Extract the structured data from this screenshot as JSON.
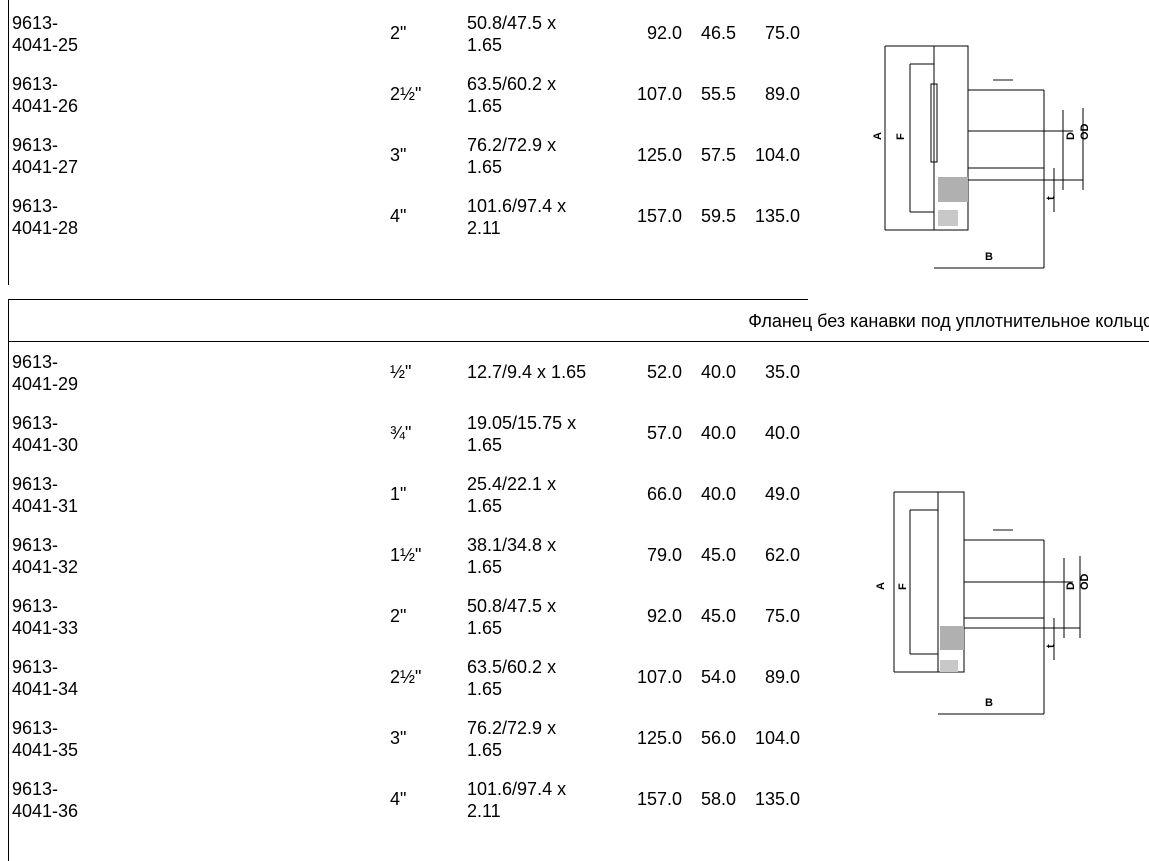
{
  "sections": [
    {
      "caption": "",
      "rows": [
        {
          "article": [
            "9613-",
            "4041-25"
          ],
          "size": "2\"",
          "tube": [
            "50.8/47.5 x",
            "1.65"
          ],
          "a": "92.0",
          "b": "46.5",
          "f": "75.0"
        },
        {
          "article": [
            "9613-",
            "4041-26"
          ],
          "size": "2½\"",
          "tube": [
            "63.5/60.2 x",
            "1.65"
          ],
          "a": "107.0",
          "b": "55.5",
          "f": "89.0"
        },
        {
          "article": [
            "9613-",
            "4041-27"
          ],
          "size": "3\"",
          "tube": [
            "76.2/72.9 x",
            "1.65"
          ],
          "a": "125.0",
          "b": "57.5",
          "f": "104.0"
        },
        {
          "article": [
            "9613-",
            "4041-28"
          ],
          "size": "4\"",
          "tube": [
            "101.6/97.4 x",
            "2.11"
          ],
          "a": "157.0",
          "b": "59.5",
          "f": "135.0"
        }
      ]
    },
    {
      "caption": "Фланец без канавки под уплотнительное кольцо",
      "rows": [
        {
          "article": [
            "9613-",
            "4041-29"
          ],
          "size": "½\"",
          "tube": [
            "12.7/9.4 x 1.65",
            ""
          ],
          "a": "52.0",
          "b": "40.0",
          "f": "35.0"
        },
        {
          "article": [
            "9613-",
            "4041-30"
          ],
          "size": "¾\"",
          "tube": [
            "19.05/15.75 x",
            "1.65"
          ],
          "a": "57.0",
          "b": "40.0",
          "f": "40.0"
        },
        {
          "article": [
            "9613-",
            "4041-31"
          ],
          "size": "1\"",
          "tube": [
            "25.4/22.1 x",
            "1.65"
          ],
          "a": "66.0",
          "b": "40.0",
          "f": "49.0"
        },
        {
          "article": [
            "9613-",
            "4041-32"
          ],
          "size": "1½\"",
          "tube": [
            "38.1/34.8 x",
            "1.65"
          ],
          "a": "79.0",
          "b": "45.0",
          "f": "62.0"
        },
        {
          "article": [
            "9613-",
            "4041-33"
          ],
          "size": "2\"",
          "tube": [
            "50.8/47.5 x",
            "1.65"
          ],
          "a": "92.0",
          "b": "45.0",
          "f": "75.0"
        },
        {
          "article": [
            "9613-",
            "4041-34"
          ],
          "size": "2½\"",
          "tube": [
            "63.5/60.2 x",
            "1.65"
          ],
          "a": "107.0",
          "b": "54.0",
          "f": "89.0"
        },
        {
          "article": [
            "9613-",
            "4041-35"
          ],
          "size": "3\"",
          "tube": [
            "76.2/72.9 x",
            "1.65"
          ],
          "a": "125.0",
          "b": "56.0",
          "f": "104.0"
        },
        {
          "article": [
            "9613-",
            "4041-36"
          ],
          "size": "4\"",
          "tube": [
            "101.6/97.4 x",
            "2.11"
          ],
          "a": "157.0",
          "b": "58.0",
          "f": "135.0"
        }
      ]
    }
  ],
  "drawings": [
    {
      "icon": "flange-with-groove-drawing",
      "labels": {
        "a": "A",
        "f": "F",
        "b": "B",
        "d": "D",
        "od": "OD",
        "t": "t"
      }
    },
    {
      "icon": "flange-without-groove-drawing",
      "labels": {
        "a": "A",
        "f": "F",
        "b": "B",
        "d": "D",
        "od": "OD",
        "t": "t"
      }
    }
  ]
}
